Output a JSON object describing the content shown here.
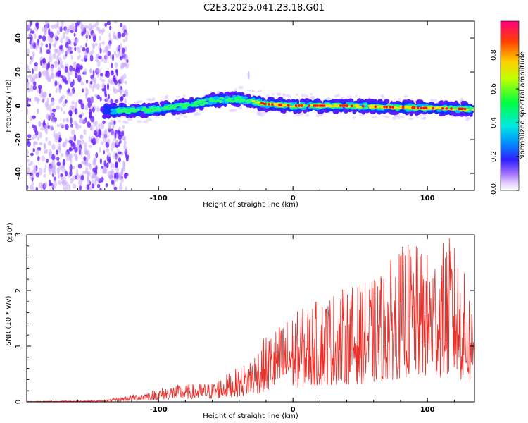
{
  "title": "C2E3.2025.041.23.18.G01",
  "colors": {
    "snr_line": "#e8302a",
    "spec_low": "#7b2fff",
    "spec_mid": "#00ff60",
    "spec_high": "#ff1010"
  },
  "chart_data": [
    {
      "type": "heatmap",
      "xlabel": "Height of straight line (km)",
      "ylabel": "Frequency (Hz)",
      "xlim": [
        -198,
        135
      ],
      "ylim": [
        -50,
        50
      ],
      "xticks": [
        -100,
        0,
        100
      ],
      "yticks": [
        40,
        20,
        0,
        -20,
        -40
      ],
      "colorbar": {
        "label": "Normalized spectral amplitude",
        "range": [
          0,
          1
        ],
        "ticks": [
          "0.8",
          "0.6",
          "0.4",
          "0.2",
          "0.0"
        ]
      },
      "ridge": [
        {
          "x": -140,
          "f": -3
        },
        {
          "x": -120,
          "f": -3
        },
        {
          "x": -100,
          "f": -2
        },
        {
          "x": -80,
          "f": 0
        },
        {
          "x": -60,
          "f": 3
        },
        {
          "x": -40,
          "f": 4
        },
        {
          "x": -20,
          "f": 1
        },
        {
          "x": 0,
          "f": 0
        },
        {
          "x": 40,
          "f": 0
        },
        {
          "x": 80,
          "f": -1
        },
        {
          "x": 135,
          "f": -2
        }
      ]
    },
    {
      "type": "line",
      "xlabel": "Height of straight line (km)",
      "ylabel": "SNR (10 * v/v)",
      "y_multiplier": "(x10⁴)",
      "xlim": [
        -198,
        135
      ],
      "ylim": [
        0,
        3
      ],
      "xticks": [
        -100,
        0,
        100
      ],
      "yticks": [
        0,
        1,
        2,
        3
      ],
      "envelope": [
        {
          "x": -198,
          "y": 0.01
        },
        {
          "x": -140,
          "y": 0.03
        },
        {
          "x": -110,
          "y": 0.18
        },
        {
          "x": -90,
          "y": 0.3
        },
        {
          "x": -60,
          "y": 0.35
        },
        {
          "x": -35,
          "y": 0.7
        },
        {
          "x": -20,
          "y": 1.2
        },
        {
          "x": 0,
          "y": 1.6
        },
        {
          "x": 30,
          "y": 2.0
        },
        {
          "x": 60,
          "y": 2.2
        },
        {
          "x": 85,
          "y": 2.9
        },
        {
          "x": 100,
          "y": 2.7
        },
        {
          "x": 118,
          "y": 3.0
        },
        {
          "x": 135,
          "y": 1.8
        }
      ]
    }
  ]
}
